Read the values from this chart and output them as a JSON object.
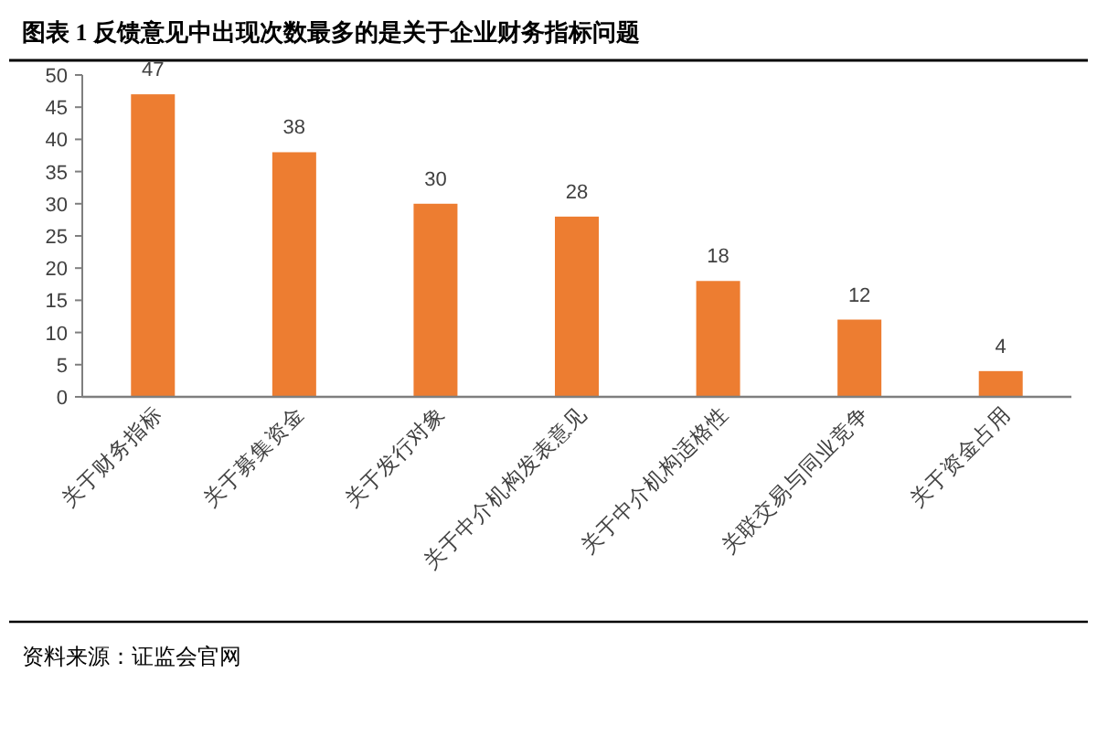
{
  "chart_data": {
    "type": "bar",
    "title": "图表 1  反馈意见中出现次数最多的是关于企业财务指标问题",
    "categories": [
      "关于财务指标",
      "关于募集资金",
      "关于发行对象",
      "关于中介机构发表意见",
      "关于中介机构适格性",
      "关联交易与同业竞争",
      "关于资金占用"
    ],
    "values": [
      47,
      38,
      30,
      28,
      18,
      12,
      4
    ],
    "color": "#ed7d31",
    "ylim": [
      0,
      50
    ],
    "yticks": [
      0,
      5,
      10,
      15,
      20,
      25,
      30,
      35,
      40,
      45,
      50
    ],
    "data_labels": true,
    "annotations": [
      "资料来源：证监会官网"
    ]
  }
}
